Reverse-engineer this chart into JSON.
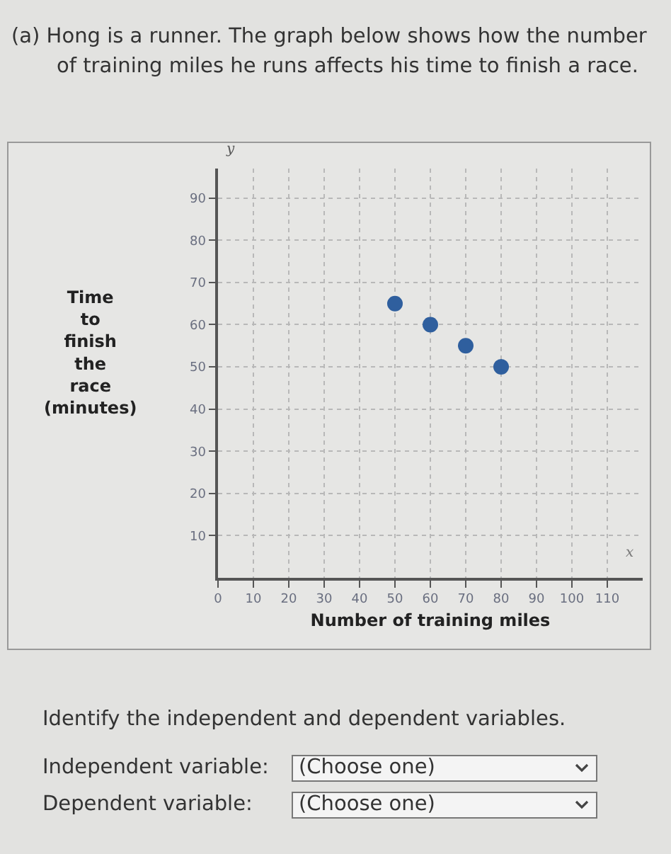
{
  "chart_data": {
    "type": "scatter",
    "title": "(a) Hong is a runner. The graph below shows how the number of training miles he runs affects his time to finish a race.",
    "xlabel": "Number of training miles",
    "ylabel": "Time to finish the race (minutes)",
    "x": [
      50,
      60,
      70,
      80
    ],
    "series": [
      {
        "color": "#2f5f9e",
        "values": [
          65,
          60,
          55,
          50
        ]
      }
    ],
    "xlim": [
      0,
      120
    ],
    "ylim": [
      0,
      97
    ],
    "xticks": [
      0,
      10,
      20,
      30,
      40,
      50,
      60,
      70,
      80,
      90,
      100,
      110
    ],
    "yticks": [
      10,
      20,
      30,
      40,
      50,
      60,
      70,
      80,
      90
    ],
    "grid": true,
    "marker": "circle",
    "annotations": [
      "x",
      "y",
      "Identify the independent and dependent variables.",
      "Independent variable:",
      "(Choose one)",
      "Dependent variable:",
      "(Choose one)"
    ]
  }
}
